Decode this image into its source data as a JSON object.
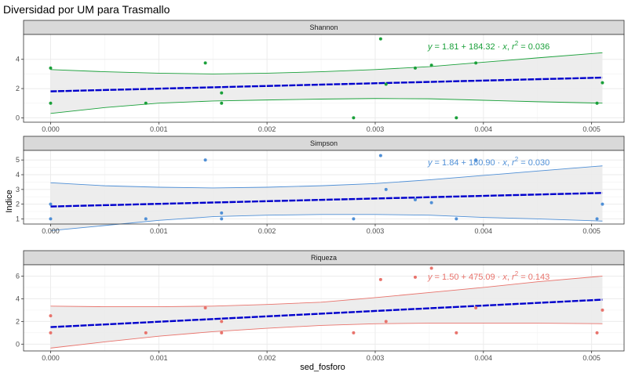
{
  "title": "Diversidad por UM para Trasmallo",
  "chart_data": {
    "type": "scatter",
    "title": "Diversidad por UM para Trasmallo",
    "xlabel": "sed_fosforo",
    "ylabel": "Indice",
    "xlim": [
      -0.00025,
      0.0053
    ],
    "x_ticks": [
      0.0,
      0.001,
      0.002,
      0.003,
      0.004,
      0.005
    ],
    "x_tick_labels": [
      "0.000",
      "0.001",
      "0.002",
      "0.003",
      "0.004",
      "0.005"
    ],
    "grid": true,
    "trend_color": "#0000CC",
    "ribbon_color": "#EBEBEB",
    "panels": [
      {
        "name": "Shannon",
        "color": "#1AA03A",
        "ylim": [
          -0.3,
          5.7
        ],
        "y_ticks": [
          0,
          2,
          4
        ],
        "equation": {
          "y": "y",
          "eq": " = 1.81 + 184.32 · ",
          "x": "x",
          "sep": ",  ",
          "r": "r",
          "sup": "2",
          "rval": " = 0.036"
        },
        "intercept": 1.81,
        "slope": 184.32,
        "ci_x": [
          0,
          0.0005,
          0.001,
          0.0015,
          0.002,
          0.0025,
          0.003,
          0.0035,
          0.004,
          0.0045,
          0.0051
        ],
        "ci_lower": [
          0.3,
          0.7,
          1.0,
          1.15,
          1.22,
          1.28,
          1.32,
          1.3,
          1.2,
          1.1,
          1.0
        ],
        "ci_upper": [
          3.3,
          3.15,
          3.05,
          3.0,
          3.05,
          3.15,
          3.3,
          3.5,
          3.8,
          4.1,
          4.45
        ],
        "points": [
          {
            "x": 0.0,
            "y": 3.4
          },
          {
            "x": 0.0,
            "y": 1.0
          },
          {
            "x": 0.00088,
            "y": 1.0
          },
          {
            "x": 0.00143,
            "y": 3.75
          },
          {
            "x": 0.00158,
            "y": 1.7
          },
          {
            "x": 0.00158,
            "y": 1.0
          },
          {
            "x": 0.0028,
            "y": 0.0
          },
          {
            "x": 0.00305,
            "y": 5.4
          },
          {
            "x": 0.0031,
            "y": 2.3
          },
          {
            "x": 0.00337,
            "y": 3.4
          },
          {
            "x": 0.00352,
            "y": 3.6
          },
          {
            "x": 0.00375,
            "y": 0.0
          },
          {
            "x": 0.00393,
            "y": 3.75
          },
          {
            "x": 0.00505,
            "y": 1.0
          },
          {
            "x": 0.0051,
            "y": 2.4
          }
        ]
      },
      {
        "name": "Simpson",
        "color": "#4F8FD6",
        "ylim": [
          0.65,
          5.65
        ],
        "y_ticks": [
          1,
          2,
          3,
          4,
          5
        ],
        "equation": {
          "y": "y",
          "eq": " = 1.84 + 180.90 · ",
          "x": "x",
          "sep": ",  ",
          "r": "r",
          "sup": "2",
          "rval": " = 0.030"
        },
        "intercept": 1.84,
        "slope": 180.9,
        "ci_x": [
          0,
          0.0005,
          0.001,
          0.0015,
          0.002,
          0.0025,
          0.003,
          0.0035,
          0.004,
          0.0045,
          0.0051
        ],
        "ci_lower": [
          0.2,
          0.55,
          0.9,
          1.15,
          1.25,
          1.3,
          1.3,
          1.25,
          1.1,
          1.0,
          0.85
        ],
        "ci_upper": [
          3.45,
          3.25,
          3.15,
          3.1,
          3.15,
          3.25,
          3.4,
          3.65,
          3.95,
          4.25,
          4.6
        ],
        "points": [
          {
            "x": 0.0,
            "y": 2.0
          },
          {
            "x": 0.0,
            "y": 1.0
          },
          {
            "x": 0.00088,
            "y": 1.0
          },
          {
            "x": 0.00143,
            "y": 5.0
          },
          {
            "x": 0.00158,
            "y": 1.4
          },
          {
            "x": 0.00158,
            "y": 1.0
          },
          {
            "x": 0.0028,
            "y": 1.0
          },
          {
            "x": 0.00305,
            "y": 5.3
          },
          {
            "x": 0.0031,
            "y": 3.0
          },
          {
            "x": 0.00337,
            "y": 2.3
          },
          {
            "x": 0.00352,
            "y": 2.1
          },
          {
            "x": 0.00375,
            "y": 1.0
          },
          {
            "x": 0.00393,
            "y": 5.0
          },
          {
            "x": 0.00505,
            "y": 1.0
          },
          {
            "x": 0.0051,
            "y": 2.0
          }
        ]
      },
      {
        "name": "Riqueza",
        "color": "#E8736C",
        "ylim": [
          -0.6,
          7.0
        ],
        "y_ticks": [
          0,
          2,
          4,
          6
        ],
        "equation": {
          "y": "y",
          "eq": " = 1.50 + 475.09 · ",
          "x": "x",
          "sep": ",  ",
          "r": "r",
          "sup": "2",
          "rval": " = 0.143"
        },
        "intercept": 1.5,
        "slope": 475.09,
        "ci_x": [
          0,
          0.0005,
          0.001,
          0.0015,
          0.002,
          0.0025,
          0.003,
          0.0035,
          0.004,
          0.0045,
          0.0051
        ],
        "ci_lower": [
          -0.35,
          0.2,
          0.7,
          1.1,
          1.4,
          1.65,
          1.8,
          1.85,
          1.85,
          1.85,
          1.8
        ],
        "ci_upper": [
          3.35,
          3.3,
          3.3,
          3.35,
          3.5,
          3.7,
          4.1,
          4.55,
          5.0,
          5.5,
          6.0
        ],
        "points": [
          {
            "x": 0.0,
            "y": 2.5
          },
          {
            "x": 0.0,
            "y": 1.0
          },
          {
            "x": 0.00088,
            "y": 1.0
          },
          {
            "x": 0.00143,
            "y": 3.2
          },
          {
            "x": 0.00158,
            "y": 2.0
          },
          {
            "x": 0.00158,
            "y": 1.0
          },
          {
            "x": 0.0028,
            "y": 1.0
          },
          {
            "x": 0.00305,
            "y": 5.7
          },
          {
            "x": 0.0031,
            "y": 2.0
          },
          {
            "x": 0.00337,
            "y": 5.9
          },
          {
            "x": 0.00352,
            "y": 6.7
          },
          {
            "x": 0.00375,
            "y": 1.0
          },
          {
            "x": 0.00393,
            "y": 3.2
          },
          {
            "x": 0.00505,
            "y": 1.0
          },
          {
            "x": 0.0051,
            "y": 3.0
          }
        ]
      }
    ]
  }
}
